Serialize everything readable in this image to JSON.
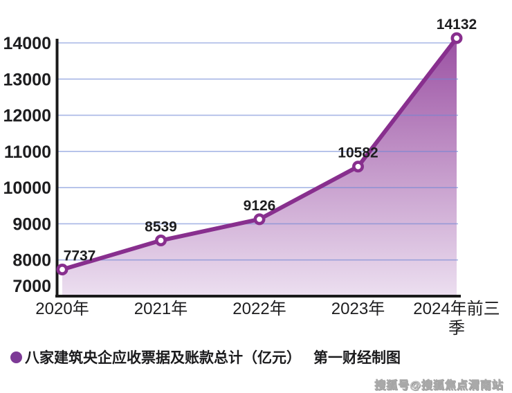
{
  "chart_data": {
    "type": "area",
    "title": "",
    "xlabel": "",
    "ylabel": "",
    "categories": [
      "2020年",
      "2021年",
      "2022年",
      "2023年",
      "2024年前三季"
    ],
    "series": [
      {
        "name": "八家建筑央企应收票据及账款总计（亿元）",
        "values": [
          7737,
          8539,
          9126,
          10582,
          14132
        ]
      }
    ],
    "ylim": [
      7000,
      14000
    ],
    "yticks": [
      7000,
      8000,
      9000,
      10000,
      11000,
      12000,
      13000,
      14000
    ],
    "grid": true,
    "data_labels_shown": true,
    "legend_position": "bottom"
  },
  "legend": {
    "series_label": "八家建筑央企应收票据及账款总计（亿元）",
    "attribution": "第一财经制图",
    "bullet_color": "#7d3a96"
  },
  "watermark": {
    "text": "搜狐号@搜狐焦点渭南站"
  },
  "colors": {
    "line": "#882f8e",
    "marker_fill": "#ffffff",
    "area_gradient_top": "#9b51a3",
    "area_gradient_bottom": "#ecdff0",
    "grid": "#6e86d4",
    "axis": "#1a1a1a",
    "label_text": "#1d1d1f"
  }
}
